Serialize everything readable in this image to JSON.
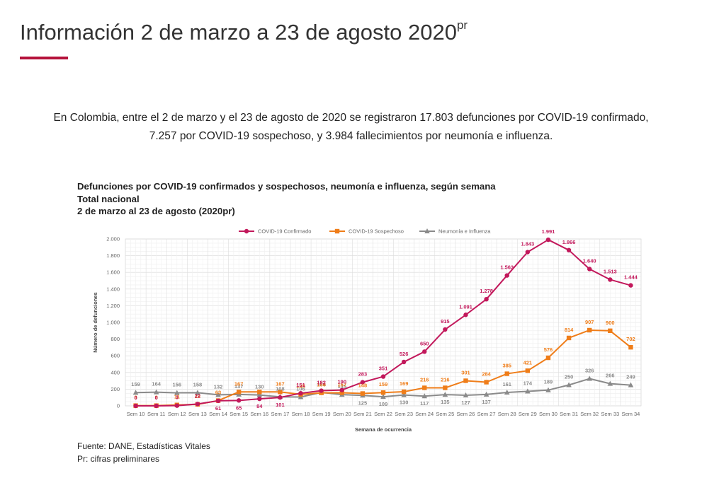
{
  "page": {
    "title": "Información 2 de marzo a 23 de agosto 2020",
    "title_sup": "pr",
    "intro_line1": "En Colombia, entre el 2 de marzo y el 23 de agosto de 2020 se registraron 17.803 defunciones por COVID-19 confirmado,",
    "intro_line2": "7.257 por COVID-19 sospechoso, y 3.984 fallecimientos por neumonía e influenza."
  },
  "chart_heading": {
    "line1": "Defunciones por COVID-19 confirmados y sospechosos, neumonía e influenza, según semana",
    "line2": "Total nacional",
    "line3": "2 de marzo al 23 de agosto (2020pr)"
  },
  "source": {
    "line1": "Fuente: DANE, Estadísticas Vitales",
    "line2": "Pr: cifras preliminares"
  },
  "colors": {
    "confirmed": "#c2185b",
    "suspected": "#ef7d19",
    "pneumonia": "#8a8a8a",
    "accent": "#b5123b"
  },
  "chart_data": {
    "type": "line",
    "xlabel": "Semana de ocurrencia",
    "ylabel": "Número de defunciones",
    "ylim": [
      0,
      2000
    ],
    "yticks": [
      0,
      200,
      400,
      600,
      800,
      1000,
      1200,
      1400,
      1600,
      1800,
      2000
    ],
    "ytick_labels": [
      "0",
      "200",
      "400",
      "600",
      "800",
      "1.000",
      "1.200",
      "1.400",
      "1.600",
      "1.800",
      "2.000"
    ],
    "grid": true,
    "legend_position": "top",
    "categories": [
      "Sem 10",
      "Sem 11",
      "Sem 12",
      "Sem 13",
      "Sem 14",
      "Sem 15",
      "Sem 16",
      "Sem 17",
      "Sem 18",
      "Sem 19",
      "Sem 20",
      "Sem 21",
      "Sem 22",
      "Sem 23",
      "Sem 24",
      "Sem 25",
      "Sem 26",
      "Sem 27",
      "Sem 28",
      "Sem 29",
      "Sem 30",
      "Sem 31",
      "Sem 32",
      "Sem 33",
      "Sem 34"
    ],
    "series": [
      {
        "name": "COVID-19 Confirmado",
        "marker": "circle",
        "values": [
          0,
          0,
          3,
          22,
          61,
          65,
          84,
          101,
          151,
          182,
          190,
          283,
          351,
          526,
          650,
          915,
          1091,
          1278,
          1563,
          1843,
          1991,
          1866,
          1640,
          1513,
          1444
        ],
        "labels": [
          "0",
          "0",
          "3",
          "22",
          "61",
          "65",
          "84",
          "101",
          "151",
          "182",
          "190",
          "283",
          "351",
          "526",
          "650",
          "915",
          "1.091",
          "1.278",
          "1.563",
          "1.843",
          "1.991",
          "1.866",
          "1.640",
          "1.513",
          "1.444"
        ]
      },
      {
        "name": "COVID-19 Sospechoso",
        "marker": "square",
        "values": [
          3,
          3,
          11,
          18,
          63,
          167,
          167,
          167,
          138,
          156,
          157,
          148,
          159,
          169,
          216,
          216,
          301,
          284,
          385,
          421,
          576,
          814,
          907,
          900,
          702
        ],
        "labels": [
          "3",
          "3",
          "11",
          "18",
          "63",
          "167",
          "",
          "167",
          "138",
          "156",
          "157",
          "148",
          "159",
          "169",
          "216",
          "216",
          "301",
          "284",
          "385",
          "421",
          "576",
          "814",
          "907",
          "900",
          "702"
        ]
      },
      {
        "name": "Neumonía e Influenza",
        "marker": "triangle",
        "values": [
          159,
          164,
          156,
          158,
          132,
          137,
          130,
          108,
          106,
          161,
          135,
          125,
          109,
          130,
          117,
          135,
          127,
          137,
          161,
          174,
          189,
          250,
          326,
          266,
          249
        ],
        "labels": [
          "159",
          "164",
          "156",
          "158",
          "132",
          "137",
          "130",
          "108",
          "106",
          "161",
          "135",
          "125",
          "109",
          "130",
          "117",
          "135",
          "127",
          "137",
          "161",
          "174",
          "189",
          "250",
          "326",
          "266",
          "249"
        ]
      }
    ]
  }
}
